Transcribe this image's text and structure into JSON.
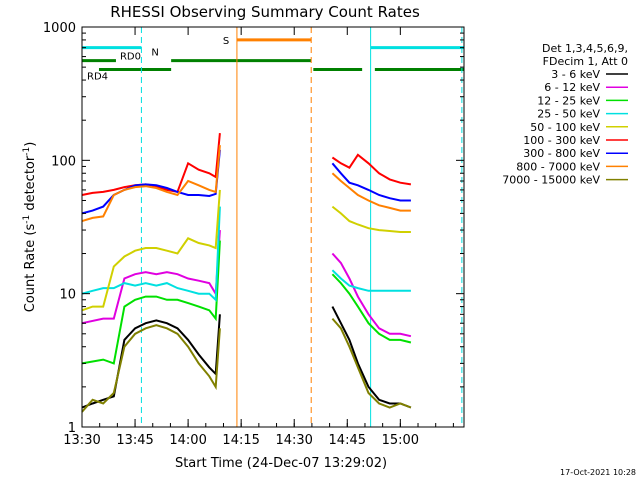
{
  "chart_data": {
    "type": "line",
    "title": "RHESSI Observing Summary Count Rates",
    "xlabel": "Start Time (24-Dec-07 13:29:02)",
    "ylabel_main": "Count Rate (s",
    "ylabel_sup1": "-1",
    "ylabel_mid": " detector",
    "ylabel_sup2": "-1",
    "ylabel_end": ")",
    "yscale": "log",
    "ylim": [
      1,
      1000
    ],
    "xlim_minutes": [
      13.5,
      15.3
    ],
    "x_ticks": [
      {
        "label": "13:30",
        "v": 13.5
      },
      {
        "label": "13:45",
        "v": 13.75
      },
      {
        "label": "14:00",
        "v": 14.0
      },
      {
        "label": "14:15",
        "v": 14.25
      },
      {
        "label": "14:30",
        "v": 14.5
      },
      {
        "label": "14:45",
        "v": 14.75
      },
      {
        "label": "15:00",
        "v": 15.0
      }
    ],
    "y_ticks": [
      {
        "label": "1",
        "v": 1
      },
      {
        "label": "10",
        "v": 10
      },
      {
        "label": "100",
        "v": 100
      },
      {
        "label": "1000",
        "v": 1000
      }
    ],
    "legend_header": [
      "Det 1,3,4,5,6,9,",
      "FDecim 1, Att 0"
    ],
    "legend_position": "right",
    "footer_date": "17-Oct-2021 10:28",
    "series": [
      {
        "name": "3 - 6 keV",
        "color": "#000000",
        "segments": [
          [
            [
              13.5,
              1.4
            ],
            [
              13.55,
              1.5
            ],
            [
              13.6,
              1.6
            ],
            [
              13.65,
              1.7
            ],
            [
              13.7,
              4.5
            ],
            [
              13.75,
              5.5
            ],
            [
              13.8,
              6.0
            ],
            [
              13.85,
              6.3
            ],
            [
              13.9,
              6.0
            ],
            [
              13.95,
              5.5
            ],
            [
              14.0,
              4.5
            ],
            [
              14.05,
              3.5
            ],
            [
              14.1,
              2.8
            ],
            [
              14.13,
              2.5
            ],
            [
              14.15,
              7.0
            ]
          ],
          [
            [
              14.68,
              8.0
            ],
            [
              14.72,
              6.0
            ],
            [
              14.76,
              4.5
            ],
            [
              14.8,
              3.0
            ],
            [
              14.85,
              2.0
            ],
            [
              14.9,
              1.6
            ],
            [
              14.95,
              1.5
            ],
            [
              15.0,
              1.5
            ],
            [
              15.05,
              1.4
            ]
          ]
        ]
      },
      {
        "name": "6 - 12 keV",
        "color": "#e000e0",
        "segments": [
          [
            [
              13.5,
              6.0
            ],
            [
              13.6,
              6.5
            ],
            [
              13.65,
              6.5
            ],
            [
              13.7,
              13.0
            ],
            [
              13.75,
              14.0
            ],
            [
              13.8,
              14.5
            ],
            [
              13.85,
              14.0
            ],
            [
              13.9,
              14.5
            ],
            [
              13.95,
              14.0
            ],
            [
              14.0,
              13.0
            ],
            [
              14.05,
              12.5
            ],
            [
              14.1,
              12.0
            ],
            [
              14.13,
              10.0
            ],
            [
              14.15,
              30.0
            ]
          ],
          [
            [
              14.68,
              20.0
            ],
            [
              14.72,
              17.0
            ],
            [
              14.76,
              13.0
            ],
            [
              14.8,
              9.5
            ],
            [
              14.85,
              7.0
            ],
            [
              14.9,
              5.5
            ],
            [
              14.95,
              5.0
            ],
            [
              15.0,
              5.0
            ],
            [
              15.05,
              4.8
            ]
          ]
        ]
      },
      {
        "name": "12 - 25 keV",
        "color": "#00e000",
        "segments": [
          [
            [
              13.5,
              3.0
            ],
            [
              13.6,
              3.2
            ],
            [
              13.65,
              3.0
            ],
            [
              13.7,
              8.0
            ],
            [
              13.75,
              9.0
            ],
            [
              13.8,
              9.5
            ],
            [
              13.85,
              9.5
            ],
            [
              13.9,
              9.0
            ],
            [
              13.95,
              9.0
            ],
            [
              14.0,
              8.5
            ],
            [
              14.05,
              8.0
            ],
            [
              14.1,
              7.5
            ],
            [
              14.13,
              6.5
            ],
            [
              14.15,
              25.0
            ]
          ],
          [
            [
              14.68,
              14.0
            ],
            [
              14.72,
              12.0
            ],
            [
              14.76,
              10.0
            ],
            [
              14.8,
              8.0
            ],
            [
              14.85,
              6.0
            ],
            [
              14.9,
              5.0
            ],
            [
              14.95,
              4.5
            ],
            [
              15.0,
              4.5
            ],
            [
              15.05,
              4.3
            ]
          ]
        ]
      },
      {
        "name": "25 - 50 keV",
        "color": "#00e0e0",
        "segments": [
          [
            [
              13.5,
              10.0
            ],
            [
              13.55,
              10.5
            ],
            [
              13.6,
              11.0
            ],
            [
              13.65,
              11.0
            ],
            [
              13.7,
              12.0
            ],
            [
              13.75,
              11.5
            ],
            [
              13.8,
              12.0
            ],
            [
              13.85,
              11.5
            ],
            [
              13.9,
              12.0
            ],
            [
              13.95,
              11.0
            ],
            [
              14.0,
              10.5
            ],
            [
              14.05,
              10.0
            ],
            [
              14.1,
              10.0
            ],
            [
              14.13,
              9.0
            ],
            [
              14.15,
              45.0
            ]
          ],
          [
            [
              14.68,
              15.0
            ],
            [
              14.72,
              13.0
            ],
            [
              14.76,
              11.5
            ],
            [
              14.8,
              11.0
            ],
            [
              14.85,
              10.5
            ],
            [
              14.9,
              10.5
            ],
            [
              14.95,
              10.5
            ],
            [
              15.0,
              10.5
            ],
            [
              15.05,
              10.5
            ]
          ]
        ]
      },
      {
        "name": "50 - 100 keV",
        "color": "#d0d000",
        "segments": [
          [
            [
              13.5,
              7.5
            ],
            [
              13.55,
              8.0
            ],
            [
              13.6,
              8.0
            ],
            [
              13.65,
              16.0
            ],
            [
              13.7,
              19.0
            ],
            [
              13.75,
              21.0
            ],
            [
              13.8,
              22.0
            ],
            [
              13.85,
              22.0
            ],
            [
              13.9,
              21.0
            ],
            [
              13.95,
              20.0
            ],
            [
              14.0,
              26.0
            ],
            [
              14.05,
              24.0
            ],
            [
              14.1,
              23.0
            ],
            [
              14.13,
              22.0
            ],
            [
              14.15,
              60.0
            ]
          ],
          [
            [
              14.68,
              45.0
            ],
            [
              14.72,
              40.0
            ],
            [
              14.76,
              35.0
            ],
            [
              14.8,
              33.0
            ],
            [
              14.85,
              31.0
            ],
            [
              14.9,
              30.0
            ],
            [
              14.95,
              29.5
            ],
            [
              15.0,
              29.0
            ],
            [
              15.05,
              29.0
            ]
          ]
        ]
      },
      {
        "name": "100 - 300 keV",
        "color": "#ff0000",
        "segments": [
          [
            [
              13.5,
              55.0
            ],
            [
              13.55,
              57.0
            ],
            [
              13.6,
              58.0
            ],
            [
              13.65,
              60.0
            ],
            [
              13.7,
              63.0
            ],
            [
              13.75,
              65.0
            ],
            [
              13.8,
              66.0
            ],
            [
              13.85,
              64.0
            ],
            [
              13.9,
              60.0
            ],
            [
              13.95,
              58.0
            ],
            [
              14.0,
              95.0
            ],
            [
              14.05,
              85.0
            ],
            [
              14.1,
              80.0
            ],
            [
              14.13,
              75.0
            ],
            [
              14.15,
              160.0
            ]
          ],
          [
            [
              14.68,
              105.0
            ],
            [
              14.72,
              95.0
            ],
            [
              14.76,
              88.0
            ],
            [
              14.8,
              110.0
            ],
            [
              14.85,
              95.0
            ],
            [
              14.9,
              80.0
            ],
            [
              14.95,
              72.0
            ],
            [
              15.0,
              68.0
            ],
            [
              15.05,
              66.0
            ]
          ]
        ]
      },
      {
        "name": "300 - 800 keV",
        "color": "#0000ff",
        "segments": [
          [
            [
              13.5,
              40.0
            ],
            [
              13.55,
              42.0
            ],
            [
              13.6,
              45.0
            ],
            [
              13.65,
              55.0
            ],
            [
              13.7,
              60.0
            ],
            [
              13.75,
              65.0
            ],
            [
              13.8,
              66.0
            ],
            [
              13.85,
              65.0
            ],
            [
              13.9,
              62.0
            ],
            [
              13.95,
              58.0
            ],
            [
              14.0,
              55.0
            ],
            [
              14.05,
              55.0
            ],
            [
              14.1,
              54.0
            ],
            [
              14.13,
              56.0
            ],
            [
              14.15,
              120.0
            ]
          ],
          [
            [
              14.68,
              95.0
            ],
            [
              14.72,
              80.0
            ],
            [
              14.76,
              68.0
            ],
            [
              14.8,
              65.0
            ],
            [
              14.85,
              60.0
            ],
            [
              14.9,
              55.0
            ],
            [
              14.95,
              52.0
            ],
            [
              15.0,
              50.0
            ],
            [
              15.05,
              50.0
            ]
          ]
        ]
      },
      {
        "name": "800 - 7000 keV",
        "color": "#ff8000",
        "segments": [
          [
            [
              13.5,
              35.0
            ],
            [
              13.55,
              37.0
            ],
            [
              13.6,
              38.0
            ],
            [
              13.65,
              55.0
            ],
            [
              13.7,
              60.0
            ],
            [
              13.75,
              63.0
            ],
            [
              13.8,
              64.0
            ],
            [
              13.85,
              62.0
            ],
            [
              13.9,
              58.0
            ],
            [
              13.95,
              55.0
            ],
            [
              14.0,
              70.0
            ],
            [
              14.05,
              65.0
            ],
            [
              14.1,
              60.0
            ],
            [
              14.13,
              58.0
            ],
            [
              14.15,
              130.0
            ]
          ],
          [
            [
              14.68,
              80.0
            ],
            [
              14.72,
              70.0
            ],
            [
              14.76,
              62.0
            ],
            [
              14.8,
              55.0
            ],
            [
              14.85,
              50.0
            ],
            [
              14.9,
              46.0
            ],
            [
              14.95,
              44.0
            ],
            [
              15.0,
              42.0
            ],
            [
              15.05,
              42.0
            ]
          ]
        ]
      },
      {
        "name": "7000 - 15000 keV",
        "color": "#808000",
        "segments": [
          [
            [
              13.5,
              1.3
            ],
            [
              13.55,
              1.6
            ],
            [
              13.6,
              1.5
            ],
            [
              13.65,
              1.8
            ],
            [
              13.7,
              4.0
            ],
            [
              13.75,
              5.0
            ],
            [
              13.8,
              5.5
            ],
            [
              13.85,
              5.8
            ],
            [
              13.9,
              5.5
            ],
            [
              13.95,
              5.0
            ],
            [
              14.0,
              4.0
            ],
            [
              14.05,
              3.0
            ],
            [
              14.1,
              2.4
            ],
            [
              14.13,
              2.0
            ],
            [
              14.15,
              5.5
            ]
          ],
          [
            [
              14.68,
              6.5
            ],
            [
              14.72,
              5.5
            ],
            [
              14.76,
              4.0
            ],
            [
              14.8,
              2.8
            ],
            [
              14.85,
              1.8
            ],
            [
              14.9,
              1.5
            ],
            [
              14.95,
              1.4
            ],
            [
              15.0,
              1.5
            ],
            [
              15.05,
              1.4
            ]
          ]
        ]
      }
    ],
    "flag_bars": [
      {
        "label": "N",
        "color": "#00e0e0",
        "y": 700,
        "segments": [
          [
            13.5,
            13.78
          ],
          [
            14.86,
            15.3
          ]
        ]
      },
      {
        "label": "S",
        "color": "#ff8000",
        "y": 800,
        "segments": [
          [
            14.23,
            14.58
          ]
        ]
      },
      {
        "label": "RD0",
        "color": "#008000",
        "y": 560,
        "segments": [
          [
            13.5,
            13.66
          ],
          [
            13.92,
            14.58
          ]
        ]
      },
      {
        "label": "RD4",
        "color": "#008000",
        "y": 480,
        "segments": [
          [
            13.58,
            13.92
          ],
          [
            14.59,
            14.82
          ],
          [
            14.88,
            15.3
          ]
        ]
      }
    ],
    "vlines": [
      {
        "x": 13.78,
        "color": "#00e0e0",
        "style": "dashed"
      },
      {
        "x": 14.23,
        "color": "#ff8000",
        "style": "solid"
      },
      {
        "x": 14.58,
        "color": "#ff8000",
        "style": "dashed"
      },
      {
        "x": 14.86,
        "color": "#00e0e0",
        "style": "solid"
      },
      {
        "x": 15.29,
        "color": "#00e0e0",
        "style": "dashed"
      }
    ]
  }
}
